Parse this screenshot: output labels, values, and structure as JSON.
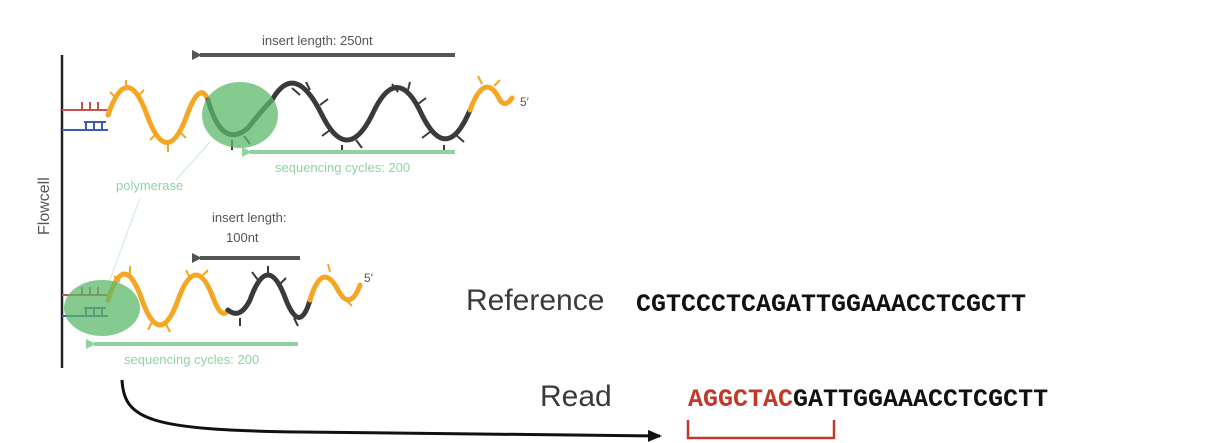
{
  "diagram": {
    "flowcell_label": "Flowcell",
    "top_insert_label": "insert length: 250nt",
    "top_cycles_label": "sequencing cycles: 200",
    "polymerase_label": "polymerase",
    "bottom_insert_label_line1": "insert length:",
    "bottom_insert_label_line2": "100nt",
    "bottom_cycles_label": "sequencing cycles: 200",
    "five_prime_top": "5′",
    "five_prime_bottom": "5′"
  },
  "alignment": {
    "reference_label": "Reference",
    "reference_sequence": "CGTCCCTCAGATTGGAAACCTCGCTT",
    "read_label": "Read",
    "read_adapter_part": "AGGCTAC",
    "read_matching_part": "GATTGGAAACCTCGCTT"
  },
  "colors": {
    "adapter_orange": "#f5a623",
    "insert_dark": "#3a3a3a",
    "polymerase_green": "#5cb86a",
    "cycles_green": "#8fd49e",
    "mismatch_red": "#c0392b",
    "anchor_red": "#c0554d",
    "anchor_blue": "#3b5bb5"
  }
}
